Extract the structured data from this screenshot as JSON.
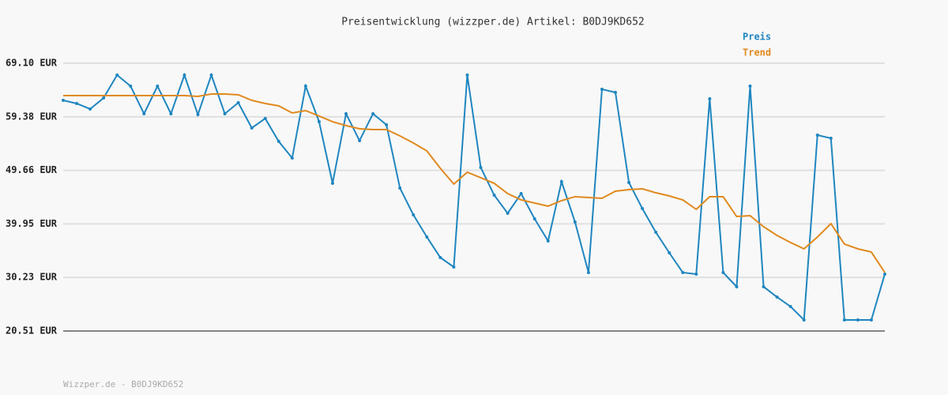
{
  "chart_data": {
    "type": "line",
    "title": "Preisentwicklung (wizzper.de) Artikel: B0DJ9KD652",
    "footer": "Wizzper.de - B0DJ9KD652",
    "ylim": [
      20.51,
      69.1
    ],
    "yticks": [
      {
        "value": 20.51,
        "label": "20.51 EUR"
      },
      {
        "value": 30.23,
        "label": "30.23 EUR"
      },
      {
        "value": 39.95,
        "label": "39.95 EUR"
      },
      {
        "value": 49.66,
        "label": "49.66 EUR"
      },
      {
        "value": 59.38,
        "label": "59.38 EUR"
      },
      {
        "value": 69.1,
        "label": "69.10 EUR"
      }
    ],
    "grid": true,
    "legend": "top-right",
    "series": [
      {
        "name": "Preis",
        "color": "#1f86c0",
        "values": [
          62.36,
          61.79,
          60.79,
          62.79,
          66.95,
          64.94,
          59.93,
          64.94,
          59.93,
          66.95,
          59.78,
          66.95,
          59.93,
          61.93,
          57.35,
          59.07,
          54.91,
          51.9,
          64.94,
          58.49,
          47.31,
          59.93,
          55.05,
          59.93,
          57.92,
          46.45,
          41.58,
          37.57,
          33.84,
          32.12,
          66.95,
          50.18,
          45.16,
          41.87,
          45.45,
          40.86,
          36.85,
          47.6,
          40.29,
          31.12,
          64.37,
          63.8,
          47.46,
          42.73,
          38.43,
          34.7,
          31.12,
          30.83,
          62.65,
          31.12,
          28.54,
          64.94,
          28.54,
          26.67,
          24.95,
          22.52,
          56.06,
          55.48,
          22.52,
          22.52,
          22.52,
          30.83
        ]
      },
      {
        "name": "Trend",
        "color": "#e0891e",
        "values": [
          63.22,
          63.22,
          63.22,
          63.22,
          63.22,
          63.22,
          63.22,
          63.22,
          63.22,
          63.22,
          63.08,
          63.51,
          63.51,
          63.37,
          62.36,
          61.79,
          61.36,
          60.07,
          60.5,
          59.5,
          58.49,
          57.78,
          57.2,
          57.06,
          57.06,
          55.91,
          54.62,
          53.19,
          50.04,
          47.17,
          49.32,
          48.32,
          47.31,
          45.45,
          44.3,
          43.73,
          43.16,
          44.16,
          44.88,
          44.73,
          44.59,
          45.88,
          46.17,
          46.31,
          45.59,
          45.02,
          44.3,
          42.58,
          44.88,
          44.88,
          41.29,
          41.44,
          39.43,
          37.85,
          36.56,
          35.42,
          37.57,
          40.0,
          36.28,
          35.42,
          34.84,
          31.12
        ]
      }
    ]
  }
}
